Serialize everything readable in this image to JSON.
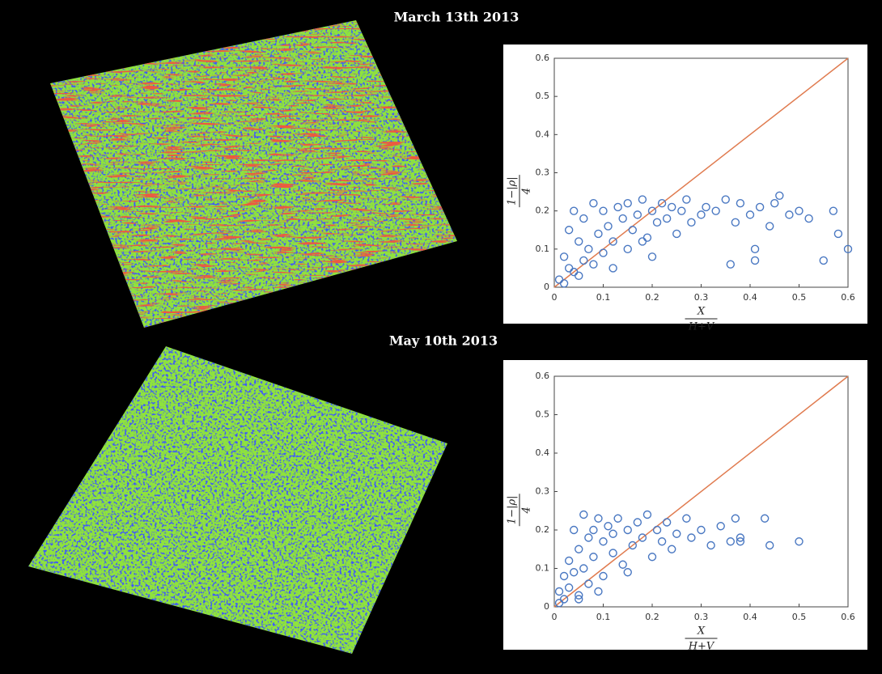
{
  "chart_data": [
    {
      "type": "scatter",
      "title": "March 13th 2013",
      "xlabel": {
        "numerator": "X",
        "denominator": "H+V"
      },
      "ylabel": {
        "numerator": "1−|ρ|",
        "denominator": "4"
      },
      "xlim": [
        0,
        0.6
      ],
      "ylim": [
        0,
        0.6
      ],
      "xticks": [
        0,
        0.1,
        0.2,
        0.3,
        0.4,
        0.5,
        0.6
      ],
      "yticks": [
        0,
        0.1,
        0.2,
        0.3,
        0.4,
        0.5,
        0.6
      ],
      "color": "#4a78c2",
      "reference_line_color": "#e07b4f",
      "x": [
        0.01,
        0.02,
        0.03,
        0.03,
        0.04,
        0.05,
        0.05,
        0.06,
        0.07,
        0.08,
        0.08,
        0.09,
        0.1,
        0.1,
        0.11,
        0.12,
        0.13,
        0.14,
        0.15,
        0.15,
        0.16,
        0.17,
        0.18,
        0.19,
        0.2,
        0.2,
        0.21,
        0.22,
        0.23,
        0.24,
        0.25,
        0.26,
        0.27,
        0.28,
        0.3,
        0.31,
        0.33,
        0.35,
        0.37,
        0.38,
        0.4,
        0.41,
        0.42,
        0.44,
        0.45,
        0.46,
        0.48,
        0.5,
        0.52,
        0.55,
        0.57,
        0.58,
        0.6,
        0.41,
        0.36,
        0.02,
        0.04,
        0.06,
        0.12,
        0.18
      ],
      "values": [
        0.02,
        0.08,
        0.15,
        0.05,
        0.2,
        0.12,
        0.03,
        0.18,
        0.1,
        0.22,
        0.06,
        0.14,
        0.2,
        0.09,
        0.16,
        0.12,
        0.21,
        0.18,
        0.1,
        0.22,
        0.15,
        0.19,
        0.23,
        0.13,
        0.2,
        0.08,
        0.17,
        0.22,
        0.18,
        0.21,
        0.14,
        0.2,
        0.23,
        0.17,
        0.19,
        0.21,
        0.2,
        0.23,
        0.17,
        0.22,
        0.19,
        0.1,
        0.21,
        0.16,
        0.22,
        0.24,
        0.19,
        0.2,
        0.18,
        0.07,
        0.2,
        0.14,
        0.1,
        0.07,
        0.06,
        0.01,
        0.04,
        0.07,
        0.05,
        0.12
      ]
    },
    {
      "type": "scatter",
      "title": "May 10th 2013",
      "xlabel": {
        "numerator": "X",
        "denominator": "H+V"
      },
      "ylabel": {
        "numerator": "1−|ρ|",
        "denominator": "4"
      },
      "xlim": [
        0,
        0.6
      ],
      "ylim": [
        0,
        0.6
      ],
      "xticks": [
        0,
        0.1,
        0.2,
        0.3,
        0.4,
        0.5,
        0.6
      ],
      "yticks": [
        0,
        0.1,
        0.2,
        0.3,
        0.4,
        0.5,
        0.6
      ],
      "color": "#4a78c2",
      "reference_line_color": "#e07b4f",
      "x": [
        0.01,
        0.01,
        0.02,
        0.02,
        0.03,
        0.03,
        0.04,
        0.04,
        0.05,
        0.05,
        0.06,
        0.06,
        0.07,
        0.07,
        0.08,
        0.08,
        0.09,
        0.1,
        0.1,
        0.11,
        0.12,
        0.12,
        0.13,
        0.14,
        0.15,
        0.16,
        0.17,
        0.18,
        0.19,
        0.2,
        0.21,
        0.22,
        0.23,
        0.24,
        0.25,
        0.27,
        0.28,
        0.3,
        0.32,
        0.34,
        0.36,
        0.37,
        0.38,
        0.38,
        0.43,
        0.44,
        0.5,
        0.05,
        0.09,
        0.15
      ],
      "values": [
        0.01,
        0.04,
        0.08,
        0.02,
        0.12,
        0.05,
        0.2,
        0.09,
        0.15,
        0.03,
        0.24,
        0.1,
        0.18,
        0.06,
        0.2,
        0.13,
        0.23,
        0.17,
        0.08,
        0.21,
        0.14,
        0.19,
        0.23,
        0.11,
        0.2,
        0.16,
        0.22,
        0.18,
        0.24,
        0.13,
        0.2,
        0.17,
        0.22,
        0.15,
        0.19,
        0.23,
        0.18,
        0.2,
        0.16,
        0.21,
        0.17,
        0.23,
        0.18,
        0.17,
        0.23,
        0.16,
        0.17,
        0.02,
        0.04,
        0.09
      ]
    }
  ]
}
